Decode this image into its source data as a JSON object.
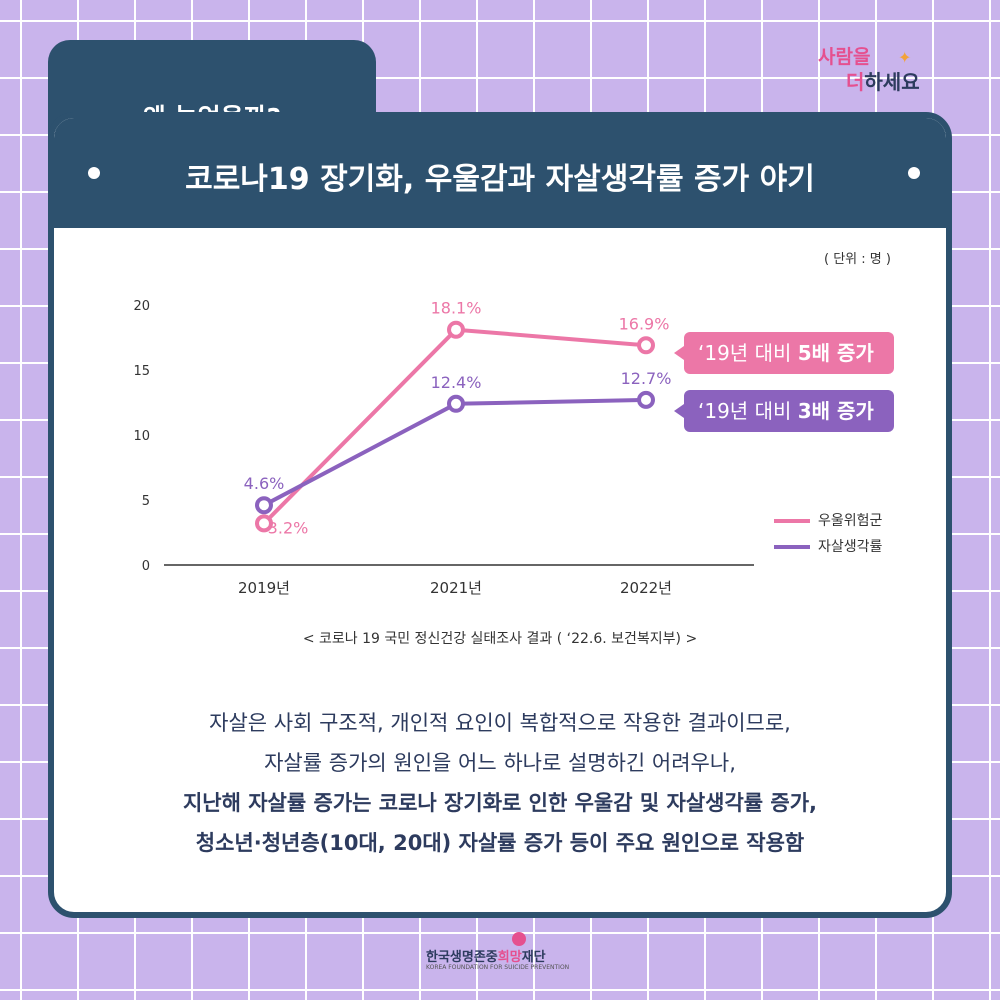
{
  "tab": {
    "title": "왜 늘었을까?"
  },
  "logo": {
    "top": "사람을",
    "bottom_accent": "더",
    "bottom_rest": "하세요"
  },
  "header": {
    "title": "코로나19 장기화, 우울감과 자살생각률 증가 야기"
  },
  "unit": "( 단위 : 명 )",
  "chart_data": {
    "type": "line",
    "categories": [
      "2019년",
      "2021년",
      "2022년"
    ],
    "yticks": [
      0,
      5,
      10,
      15,
      20
    ],
    "ylim": [
      0,
      20
    ],
    "grid": false,
    "legend_position": "right",
    "series": [
      {
        "name": "우울위험군",
        "values": [
          3.2,
          18.1,
          16.9
        ],
        "labels": [
          "3.2%",
          "18.1%",
          "16.9%"
        ],
        "color": "#ec77a7"
      },
      {
        "name": "자살생각률",
        "values": [
          4.6,
          12.4,
          12.7
        ],
        "labels": [
          "4.6%",
          "12.4%",
          "12.7%"
        ],
        "color": "#8b62be"
      }
    ]
  },
  "callouts": [
    {
      "prefix": "‘19년 대비 ",
      "emphasis": "5배 증가",
      "color": "#ec77a7"
    },
    {
      "prefix": "‘19년 대비 ",
      "emphasis": "3배 증가",
      "color": "#8b62be"
    }
  ],
  "source": "< 코로나 19 국민 정신건강 실태조사 결과 ( ‘22.6. 보건복지부) >",
  "body": {
    "line1": "자살은 사회 구조적, 개인적 요인이 복합적으로 작용한 결과이므로,",
    "line2": "자살률 증가의 원인을 어느 하나로 설명하긴 어려우나,",
    "line3": "지난해 자살률 증가는 코로나 장기화로 인한 우울감 및 자살생각률 증가,",
    "line4": "청소년·청년층(10대, 20대) 자살률 증가 등이 주요 원인으로 작용함"
  },
  "footer": {
    "name_before": "한국생명존중",
    "name_accent": "희망",
    "name_after": "재단",
    "sub": "KOREA FOUNDATION FOR SUICIDE PREVENTION"
  },
  "colors": {
    "navy": "#2d516e",
    "pink": "#ec77a7",
    "purple": "#8b62be",
    "background": "#c9b4ec"
  }
}
